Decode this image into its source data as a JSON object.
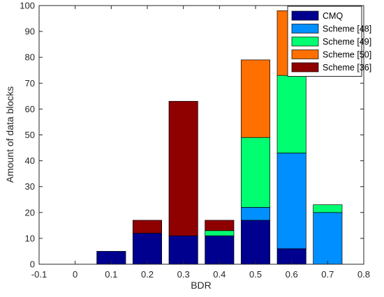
{
  "chart_data": {
    "type": "bar",
    "stacked": true,
    "xlabel": "BDR",
    "ylabel": "Amount of data blocks",
    "xlim": [
      -0.1,
      0.8
    ],
    "ylim": [
      0,
      100
    ],
    "xticks": [
      "-0.1",
      "0",
      "0.1",
      "0.2",
      "0.3",
      "0.4",
      "0.5",
      "0.6",
      "0.7",
      "0.8"
    ],
    "yticks": [
      "0",
      "10",
      "20",
      "30",
      "40",
      "50",
      "60",
      "70",
      "80",
      "90",
      "100"
    ],
    "grid": false,
    "legend_position": "top-right",
    "colors": {
      "CMQ": "#00008f",
      "Scheme [48]": "#008fff",
      "Scheme [49]": "#00ff70",
      "Scheme [50]": "#ff7000",
      "Scheme [36]": "#8f0000"
    },
    "series": [
      {
        "name": "CMQ",
        "values": [
          {
            "x": 0.1,
            "y": 5
          },
          {
            "x": 0.2,
            "y": 12
          },
          {
            "x": 0.3,
            "y": 11
          },
          {
            "x": 0.4,
            "y": 11
          },
          {
            "x": 0.5,
            "y": 17
          },
          {
            "x": 0.6,
            "y": 6
          }
        ]
      },
      {
        "name": "Scheme [48]",
        "values": [
          {
            "x": 0.5,
            "y": 5
          },
          {
            "x": 0.6,
            "y": 37
          },
          {
            "x": 0.7,
            "y": 20
          }
        ]
      },
      {
        "name": "Scheme [49]",
        "values": [
          {
            "x": 0.4,
            "y": 2
          },
          {
            "x": 0.5,
            "y": 27
          },
          {
            "x": 0.6,
            "y": 30
          },
          {
            "x": 0.7,
            "y": 3
          }
        ]
      },
      {
        "name": "Scheme [50]",
        "values": [
          {
            "x": 0.5,
            "y": 30
          },
          {
            "x": 0.6,
            "y": 25
          }
        ]
      },
      {
        "name": "Scheme [36]",
        "values": [
          {
            "x": 0.2,
            "y": 5
          },
          {
            "x": 0.3,
            "y": 52
          },
          {
            "x": 0.4,
            "y": 4
          }
        ]
      }
    ]
  }
}
